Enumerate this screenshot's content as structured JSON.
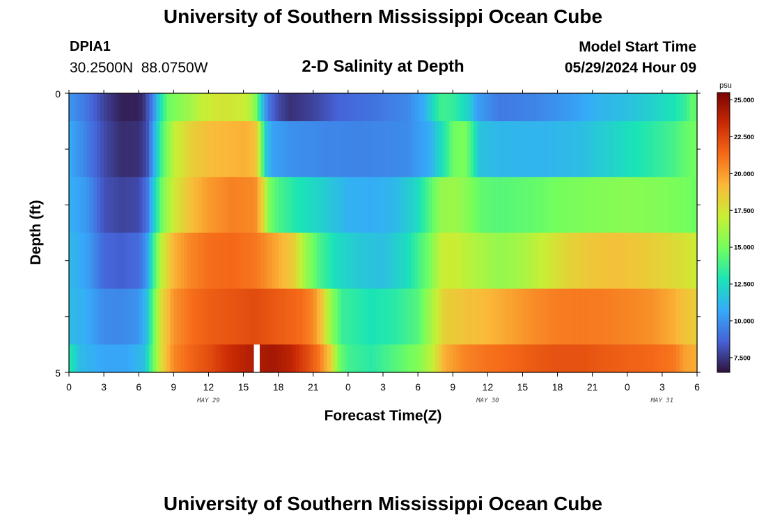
{
  "header": {
    "title": "University of Southern Mississippi Ocean Cube",
    "station_id": "DPIA1",
    "station_coords": "30.2500N  88.0750W",
    "chart_title": "2-D Salinity at Depth",
    "model_start_label": "Model Start Time",
    "model_start_value": "05/29/2024 Hour 09"
  },
  "footer": {
    "title": "University of Southern Mississippi Ocean Cube"
  },
  "colors": {
    "colormap": [
      "#30123b",
      "#4662d7",
      "#36aaf9",
      "#1ae4b6",
      "#72fe5e",
      "#c8ef34",
      "#faba39",
      "#f66b19",
      "#ca2a04",
      "#7a0403"
    ],
    "gap": "#ffffff",
    "background": "#ffffff"
  },
  "chart_data": {
    "type": "heatmap",
    "title": "2-D Salinity at Depth",
    "xlabel": "Forecast Time(Z)",
    "ylabel": "Depth (ft)",
    "colorbar_unit": "psu",
    "value_range": [
      6.5,
      25.5
    ],
    "colorbar_ticks": [
      "7.500",
      "10.000",
      "12.500",
      "15.000",
      "17.500",
      "20.000",
      "22.500",
      "25.000"
    ],
    "colorbar_tick_values": [
      7.5,
      10.0,
      12.5,
      15.0,
      17.5,
      20.0,
      22.5,
      25.0
    ],
    "x_range_hours": [
      0,
      54
    ],
    "x_tick_hours": [
      0,
      3,
      6,
      9,
      12,
      15,
      18,
      21,
      24,
      27,
      30,
      33,
      36,
      39,
      42,
      45,
      48,
      51,
      54
    ],
    "x_tick_labels": [
      "0",
      "3",
      "6",
      "9",
      "12",
      "15",
      "18",
      "21",
      "0",
      "3",
      "6",
      "9",
      "12",
      "15",
      "18",
      "21",
      "0",
      "3",
      "6"
    ],
    "date_labels": [
      {
        "text": "MAY 29",
        "hour": 12
      },
      {
        "text": "MAY 30",
        "hour": 36
      },
      {
        "text": "MAY 31",
        "hour": 51
      }
    ],
    "y_range_ft": [
      0,
      5
    ],
    "y_tick_labels": [
      "0",
      "5"
    ],
    "y_minor_ticks_ft": [
      0,
      1,
      2,
      3,
      4,
      5
    ],
    "gap": {
      "layer": 5,
      "hour_start": 15.9,
      "hour_end": 16.4
    },
    "layers": [
      {
        "depth_ft": [
          0,
          0.5
        ],
        "profile": [
          [
            0,
            10.2
          ],
          [
            1.5,
            9.2
          ],
          [
            3,
            7.8
          ],
          [
            4.5,
            6.9
          ],
          [
            6,
            6.9
          ],
          [
            6.5,
            7.5
          ],
          [
            7.2,
            9.5
          ],
          [
            7.8,
            12.5
          ],
          [
            8.5,
            14.8
          ],
          [
            10,
            15.8
          ],
          [
            11.5,
            17
          ],
          [
            13,
            17.5
          ],
          [
            15,
            17.2
          ],
          [
            15.6,
            16.5
          ],
          [
            16.1,
            15.2
          ],
          [
            16.4,
            13
          ],
          [
            16.8,
            10.5
          ],
          [
            17.3,
            9
          ],
          [
            18,
            8
          ],
          [
            19,
            7.3
          ],
          [
            21,
            7.8
          ],
          [
            23,
            8.6
          ],
          [
            26,
            9.1
          ],
          [
            29,
            9.7
          ],
          [
            30.5,
            10.8
          ],
          [
            31.3,
            12.5
          ],
          [
            32,
            13.8
          ],
          [
            33,
            13.5
          ],
          [
            34.5,
            12
          ],
          [
            35,
            10.5
          ],
          [
            37,
            9.3
          ],
          [
            40,
            9.6
          ],
          [
            43,
            10.3
          ],
          [
            46,
            11.2
          ],
          [
            48,
            11.5
          ],
          [
            50,
            12.1
          ],
          [
            52,
            12.8
          ],
          [
            53,
            13.5
          ],
          [
            53.5,
            14.5
          ],
          [
            54,
            14.5
          ]
        ]
      },
      {
        "depth_ft": [
          0.5,
          1.5
        ],
        "profile": [
          [
            0,
            10.8
          ],
          [
            1.5,
            9.5
          ],
          [
            3,
            8
          ],
          [
            4.5,
            7.2
          ],
          [
            6,
            7.3
          ],
          [
            6.7,
            8
          ],
          [
            7.3,
            10.8
          ],
          [
            8,
            14
          ],
          [
            9,
            16.8
          ],
          [
            10.5,
            18.3
          ],
          [
            12,
            19
          ],
          [
            14,
            19.3
          ],
          [
            15.2,
            19.4
          ],
          [
            16,
            19
          ],
          [
            16.4,
            16.5
          ],
          [
            16.9,
            12
          ],
          [
            17.5,
            10.5
          ],
          [
            19,
            10
          ],
          [
            22,
            9.7
          ],
          [
            25,
            9.6
          ],
          [
            29,
            9.8
          ],
          [
            31,
            10.8
          ],
          [
            32.5,
            13.5
          ],
          [
            33,
            14.8
          ],
          [
            34,
            15.2
          ],
          [
            34.6,
            13.8
          ],
          [
            35.3,
            11.6
          ],
          [
            37,
            11.2
          ],
          [
            41,
            11.1
          ],
          [
            44,
            11.4
          ],
          [
            46,
            12
          ],
          [
            48,
            12.6
          ],
          [
            50,
            13.2
          ],
          [
            52,
            13.9
          ],
          [
            53,
            14.6
          ],
          [
            54,
            15
          ]
        ]
      },
      {
        "depth_ft": [
          1.5,
          2.5
        ],
        "profile": [
          [
            0,
            11
          ],
          [
            1.5,
            10.2
          ],
          [
            3,
            8.2
          ],
          [
            4.5,
            7.8
          ],
          [
            6,
            8
          ],
          [
            6.7,
            9
          ],
          [
            7.3,
            12
          ],
          [
            8,
            15
          ],
          [
            9,
            17.2
          ],
          [
            10.5,
            19
          ],
          [
            12,
            20
          ],
          [
            14,
            20.7
          ],
          [
            16,
            20.5
          ],
          [
            16.6,
            18.5
          ],
          [
            17.2,
            15.2
          ],
          [
            18,
            14
          ],
          [
            19.5,
            13
          ],
          [
            22,
            12
          ],
          [
            24,
            11
          ],
          [
            26,
            10.8
          ],
          [
            28,
            11.2
          ],
          [
            30,
            12.5
          ],
          [
            31,
            14.2
          ],
          [
            32,
            15.8
          ],
          [
            33,
            16
          ],
          [
            34,
            15.6
          ],
          [
            35.5,
            14.5
          ],
          [
            37,
            14.3
          ],
          [
            40,
            14.6
          ],
          [
            42,
            15
          ],
          [
            45,
            15.3
          ],
          [
            48,
            15.5
          ],
          [
            51,
            15.3
          ],
          [
            53,
            15
          ],
          [
            54,
            14.8
          ]
        ]
      },
      {
        "depth_ft": [
          2.5,
          3.5
        ],
        "profile": [
          [
            0,
            11.3
          ],
          [
            1.5,
            10.5
          ],
          [
            3,
            8.8
          ],
          [
            4.5,
            8.5
          ],
          [
            6,
            8.9
          ],
          [
            6.7,
            10.2
          ],
          [
            7.3,
            13.8
          ],
          [
            8,
            17
          ],
          [
            9,
            19.3
          ],
          [
            10.5,
            20.6
          ],
          [
            12,
            21.2
          ],
          [
            14,
            21.4
          ],
          [
            16,
            21
          ],
          [
            17,
            20.3
          ],
          [
            18,
            19.5
          ],
          [
            19.3,
            18.5
          ],
          [
            20.3,
            16
          ],
          [
            21.5,
            14
          ],
          [
            23,
            12.5
          ],
          [
            25,
            11.8
          ],
          [
            27,
            11.5
          ],
          [
            29,
            12.5
          ],
          [
            31,
            15
          ],
          [
            32,
            17
          ],
          [
            33,
            17.2
          ],
          [
            35,
            16.4
          ],
          [
            37,
            15.8
          ],
          [
            39,
            16.2
          ],
          [
            41,
            17.2
          ],
          [
            43,
            18.2
          ],
          [
            45,
            18.7
          ],
          [
            47,
            18.9
          ],
          [
            49,
            18.6
          ],
          [
            51,
            18.2
          ],
          [
            53,
            17.6
          ],
          [
            54,
            17.2
          ]
        ]
      },
      {
        "depth_ft": [
          3.5,
          4.5
        ],
        "profile": [
          [
            0,
            11.4
          ],
          [
            1.5,
            10.8
          ],
          [
            3,
            9.8
          ],
          [
            4.5,
            9.7
          ],
          [
            6,
            10.1
          ],
          [
            6.7,
            11.5
          ],
          [
            7.3,
            14.8
          ],
          [
            8,
            18
          ],
          [
            9,
            20.2
          ],
          [
            10.5,
            21.2
          ],
          [
            12,
            21.7
          ],
          [
            14,
            22
          ],
          [
            16,
            22.3
          ],
          [
            18,
            21.8
          ],
          [
            20,
            21.3
          ],
          [
            21,
            20.5
          ],
          [
            21.8,
            18.5
          ],
          [
            22.5,
            15.8
          ],
          [
            23.5,
            13.6
          ],
          [
            26,
            12.8
          ],
          [
            28,
            13.2
          ],
          [
            30,
            14.2
          ],
          [
            31.3,
            16.5
          ],
          [
            32.3,
            18.3
          ],
          [
            34,
            18.8
          ],
          [
            36,
            19.2
          ],
          [
            38,
            19.8
          ],
          [
            40,
            20.4
          ],
          [
            42,
            20.8
          ],
          [
            44,
            20.9
          ],
          [
            46,
            20.8
          ],
          [
            48,
            20.6
          ],
          [
            50,
            20.3
          ],
          [
            52,
            19.5
          ],
          [
            53,
            18.8
          ],
          [
            54,
            18.4
          ]
        ]
      },
      {
        "depth_ft": [
          4.5,
          5.0
        ],
        "profile": [
          [
            0,
            13.2
          ],
          [
            1,
            11.3
          ],
          [
            3,
            10.6
          ],
          [
            5,
            10.6
          ],
          [
            6.5,
            11.5
          ],
          [
            7.3,
            15
          ],
          [
            8,
            18
          ],
          [
            9,
            20.5
          ],
          [
            10.5,
            21.5
          ],
          [
            12,
            22.2
          ],
          [
            13.5,
            23.2
          ],
          [
            15,
            23.8
          ],
          [
            16,
            24.1
          ],
          [
            17.5,
            24.4
          ],
          [
            19,
            23.8
          ],
          [
            20.5,
            22.3
          ],
          [
            21.5,
            21
          ],
          [
            22.5,
            18.5
          ],
          [
            23.2,
            15
          ],
          [
            24,
            13.8
          ],
          [
            26,
            13.2
          ],
          [
            28,
            14.2
          ],
          [
            30,
            15.3
          ],
          [
            31.3,
            17
          ],
          [
            32.3,
            19.5
          ],
          [
            34,
            20.6
          ],
          [
            36,
            21.1
          ],
          [
            38,
            21.4
          ],
          [
            40,
            21.8
          ],
          [
            42,
            22.1
          ],
          [
            44,
            22.1
          ],
          [
            46,
            21.8
          ],
          [
            48,
            21.6
          ],
          [
            50,
            21.4
          ],
          [
            52,
            21
          ],
          [
            53,
            19.8
          ],
          [
            54,
            19.5
          ]
        ]
      }
    ]
  }
}
